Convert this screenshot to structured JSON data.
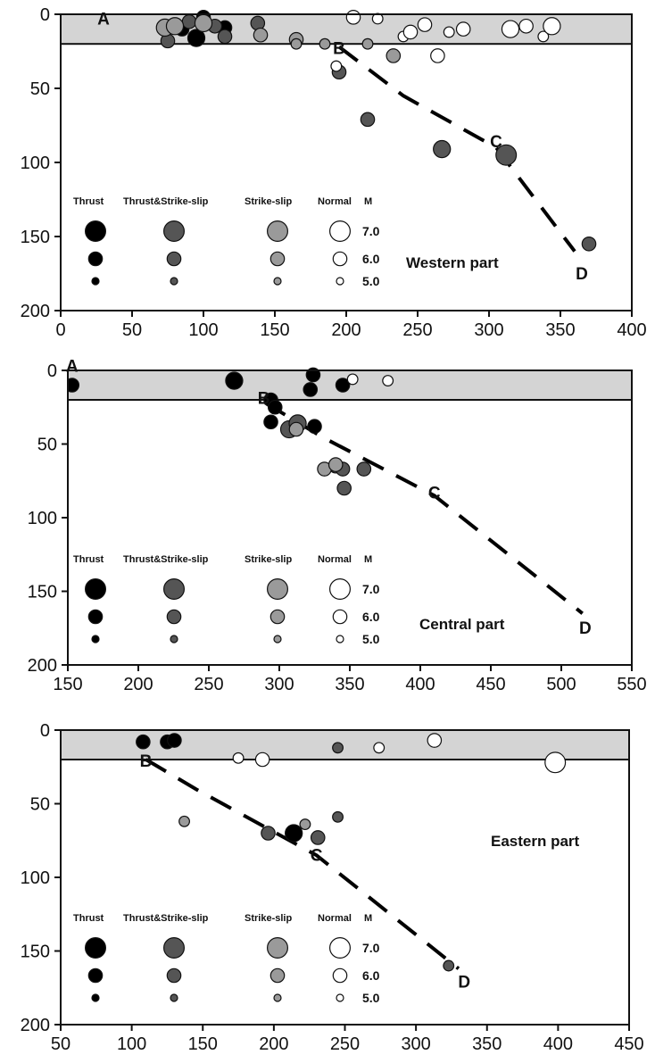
{
  "legend": {
    "headers": [
      "Thrust",
      "Thrust&Strike-slip",
      "Strike-slip",
      "Normal",
      "M"
    ],
    "magnitudes": [
      "7.0",
      "6.0",
      "5.0"
    ],
    "type_colors": {
      "Thrust": "#000000",
      "Thrust&Strike-slip": "#555555",
      "Strike-slip": "#9a9a9a",
      "Normal": "#ffffff"
    }
  },
  "chart_data": [
    {
      "type": "scatter",
      "title": "Western part",
      "xlabel": "",
      "ylabel": "",
      "xlim": [
        0,
        400
      ],
      "ylim": [
        200,
        0
      ],
      "xticks": [
        "0",
        "50",
        "100",
        "150",
        "200",
        "250",
        "300",
        "350",
        "400"
      ],
      "yticks": [
        "0",
        "50",
        "100",
        "150",
        "200"
      ],
      "shaded_band": [
        0,
        20
      ],
      "slab_line": [
        [
          195,
          22
        ],
        [
          240,
          55
        ],
        [
          305,
          90
        ],
        [
          360,
          160
        ]
      ],
      "line_labels": [
        {
          "text": "A",
          "x": 30,
          "y": 2
        },
        {
          "text": "B",
          "x": 195,
          "y": 22
        },
        {
          "text": "C",
          "x": 305,
          "y": 85
        },
        {
          "text": "D",
          "x": 365,
          "y": 174
        }
      ],
      "points": [
        {
          "x": 100,
          "y": 2,
          "type": "Thrust",
          "m": 6.0
        },
        {
          "x": 85,
          "y": 10,
          "type": "Thrust",
          "m": 6.0
        },
        {
          "x": 95,
          "y": 16,
          "type": "Thrust",
          "m": 6.5
        },
        {
          "x": 115,
          "y": 9,
          "type": "Thrust",
          "m": 6.0
        },
        {
          "x": 90,
          "y": 5,
          "type": "Thrust&Strike-slip",
          "m": 6.0
        },
        {
          "x": 75,
          "y": 18,
          "type": "Thrust&Strike-slip",
          "m": 6.0
        },
        {
          "x": 108,
          "y": 8,
          "type": "Thrust&Strike-slip",
          "m": 6.0
        },
        {
          "x": 115,
          "y": 15,
          "type": "Thrust&Strike-slip",
          "m": 6.0
        },
        {
          "x": 138,
          "y": 6,
          "type": "Thrust&Strike-slip",
          "m": 6.0
        },
        {
          "x": 195,
          "y": 39,
          "type": "Thrust&Strike-slip",
          "m": 6.0
        },
        {
          "x": 215,
          "y": 71,
          "type": "Thrust&Strike-slip",
          "m": 6.0
        },
        {
          "x": 267,
          "y": 91,
          "type": "Thrust&Strike-slip",
          "m": 6.5
        },
        {
          "x": 312,
          "y": 95,
          "type": "Thrust&Strike-slip",
          "m": 7.0
        },
        {
          "x": 370,
          "y": 155,
          "type": "Thrust&Strike-slip",
          "m": 6.0
        },
        {
          "x": 73,
          "y": 9,
          "type": "Strike-slip",
          "m": 6.5
        },
        {
          "x": 80,
          "y": 8,
          "type": "Strike-slip",
          "m": 6.5
        },
        {
          "x": 100,
          "y": 6,
          "type": "Strike-slip",
          "m": 6.5
        },
        {
          "x": 140,
          "y": 14,
          "type": "Strike-slip",
          "m": 6.0
        },
        {
          "x": 165,
          "y": 17,
          "type": "Strike-slip",
          "m": 6.0
        },
        {
          "x": 165,
          "y": 20,
          "type": "Strike-slip",
          "m": 5.5
        },
        {
          "x": 185,
          "y": 20,
          "type": "Strike-slip",
          "m": 5.5
        },
        {
          "x": 215,
          "y": 20,
          "type": "Strike-slip",
          "m": 5.5
        },
        {
          "x": 233,
          "y": 28,
          "type": "Strike-slip",
          "m": 6.0
        },
        {
          "x": 205,
          "y": 2,
          "type": "Normal",
          "m": 6.0
        },
        {
          "x": 222,
          "y": 3,
          "type": "Normal",
          "m": 5.5
        },
        {
          "x": 193,
          "y": 35,
          "type": "Normal",
          "m": 5.5
        },
        {
          "x": 240,
          "y": 15,
          "type": "Normal",
          "m": 5.5
        },
        {
          "x": 245,
          "y": 12,
          "type": "Normal",
          "m": 6.0
        },
        {
          "x": 255,
          "y": 7,
          "type": "Normal",
          "m": 6.0
        },
        {
          "x": 264,
          "y": 28,
          "type": "Normal",
          "m": 6.0
        },
        {
          "x": 272,
          "y": 12,
          "type": "Normal",
          "m": 5.5
        },
        {
          "x": 282,
          "y": 10,
          "type": "Normal",
          "m": 6.0
        },
        {
          "x": 315,
          "y": 10,
          "type": "Normal",
          "m": 6.5
        },
        {
          "x": 326,
          "y": 8,
          "type": "Normal",
          "m": 6.0
        },
        {
          "x": 338,
          "y": 15,
          "type": "Normal",
          "m": 5.5
        },
        {
          "x": 344,
          "y": 8,
          "type": "Normal",
          "m": 6.5
        }
      ]
    },
    {
      "type": "scatter",
      "title": "Central part",
      "xlabel": "",
      "ylabel": "",
      "xlim": [
        150,
        550
      ],
      "ylim": [
        200,
        0
      ],
      "xticks": [
        "150",
        "200",
        "250",
        "300",
        "350",
        "400",
        "450",
        "500",
        "550"
      ],
      "yticks": [
        "0",
        "50",
        "100",
        "150",
        "200"
      ],
      "shaded_band": [
        0,
        20
      ],
      "slab_line": [
        [
          290,
          22
        ],
        [
          330,
          45
        ],
        [
          410,
          85
        ],
        [
          515,
          165
        ]
      ],
      "line_labels": [
        {
          "text": "A",
          "x": 153,
          "y": -4
        },
        {
          "text": "B",
          "x": 289,
          "y": 18
        },
        {
          "text": "C",
          "x": 410,
          "y": 82
        },
        {
          "text": "D",
          "x": 517,
          "y": 174
        }
      ],
      "points": [
        {
          "x": 153,
          "y": 10,
          "type": "Thrust",
          "m": 6.0
        },
        {
          "x": 268,
          "y": 7,
          "type": "Thrust",
          "m": 6.5
        },
        {
          "x": 294,
          "y": 20,
          "type": "Thrust",
          "m": 6.0
        },
        {
          "x": 297,
          "y": 25,
          "type": "Thrust",
          "m": 6.0
        },
        {
          "x": 294,
          "y": 35,
          "type": "Thrust",
          "m": 6.0
        },
        {
          "x": 324,
          "y": 3,
          "type": "Thrust",
          "m": 6.0
        },
        {
          "x": 322,
          "y": 13,
          "type": "Thrust",
          "m": 6.0
        },
        {
          "x": 345,
          "y": 10,
          "type": "Thrust",
          "m": 6.0
        },
        {
          "x": 325,
          "y": 38,
          "type": "Thrust",
          "m": 6.0
        },
        {
          "x": 307,
          "y": 40,
          "type": "Thrust&Strike-slip",
          "m": 6.5
        },
        {
          "x": 313,
          "y": 36,
          "type": "Thrust&Strike-slip",
          "m": 6.5
        },
        {
          "x": 340,
          "y": 65,
          "type": "Thrust&Strike-slip",
          "m": 6.0
        },
        {
          "x": 346,
          "y": 80,
          "type": "Thrust&Strike-slip",
          "m": 6.0
        },
        {
          "x": 345,
          "y": 67,
          "type": "Thrust&Strike-slip",
          "m": 6.0
        },
        {
          "x": 360,
          "y": 67,
          "type": "Thrust&Strike-slip",
          "m": 6.0
        },
        {
          "x": 332,
          "y": 67,
          "type": "Strike-slip",
          "m": 6.0
        },
        {
          "x": 340,
          "y": 64,
          "type": "Strike-slip",
          "m": 6.0
        },
        {
          "x": 312,
          "y": 40,
          "type": "Strike-slip",
          "m": 6.0
        },
        {
          "x": 352,
          "y": 6,
          "type": "Normal",
          "m": 5.5
        },
        {
          "x": 377,
          "y": 7,
          "type": "Normal",
          "m": 5.5
        }
      ]
    },
    {
      "type": "scatter",
      "title": "Eastern part",
      "xlabel": "",
      "ylabel": "",
      "xlim": [
        50,
        450
      ],
      "ylim": [
        200,
        0
      ],
      "xticks": [
        "50",
        "100",
        "150",
        "200",
        "250",
        "300",
        "350",
        "400",
        "450"
      ],
      "yticks": [
        "0",
        "50",
        "100",
        "150",
        "200"
      ],
      "shaded_band": [
        0,
        20
      ],
      "slab_line": [
        [
          110,
          20
        ],
        [
          145,
          40
        ],
        [
          230,
          85
        ],
        [
          330,
          162
        ]
      ],
      "line_labels": [
        {
          "text": "B",
          "x": 110,
          "y": 20
        },
        {
          "text": "C",
          "x": 230,
          "y": 84
        },
        {
          "text": "D",
          "x": 334,
          "y": 170
        }
      ],
      "points": [
        {
          "x": 108,
          "y": 8,
          "type": "Thrust",
          "m": 6.0
        },
        {
          "x": 125,
          "y": 8,
          "type": "Thrust",
          "m": 6.0
        },
        {
          "x": 130,
          "y": 7,
          "type": "Thrust",
          "m": 6.0
        },
        {
          "x": 214,
          "y": 70,
          "type": "Thrust",
          "m": 6.5
        },
        {
          "x": 196,
          "y": 70,
          "type": "Thrust&Strike-slip",
          "m": 6.0
        },
        {
          "x": 231,
          "y": 73,
          "type": "Thrust&Strike-slip",
          "m": 6.0
        },
        {
          "x": 245,
          "y": 59,
          "type": "Thrust&Strike-slip",
          "m": 5.5
        },
        {
          "x": 245,
          "y": 12,
          "type": "Thrust&Strike-slip",
          "m": 5.5
        },
        {
          "x": 323,
          "y": 160,
          "type": "Thrust&Strike-slip",
          "m": 5.5
        },
        {
          "x": 137,
          "y": 62,
          "type": "Strike-slip",
          "m": 5.5
        },
        {
          "x": 222,
          "y": 64,
          "type": "Strike-slip",
          "m": 5.5
        },
        {
          "x": 175,
          "y": 19,
          "type": "Normal",
          "m": 5.5
        },
        {
          "x": 192,
          "y": 20,
          "type": "Normal",
          "m": 6.0
        },
        {
          "x": 274,
          "y": 12,
          "type": "Normal",
          "m": 5.5
        },
        {
          "x": 313,
          "y": 7,
          "type": "Normal",
          "m": 6.0
        },
        {
          "x": 398,
          "y": 22,
          "type": "Normal",
          "m": 7.0
        }
      ]
    }
  ]
}
